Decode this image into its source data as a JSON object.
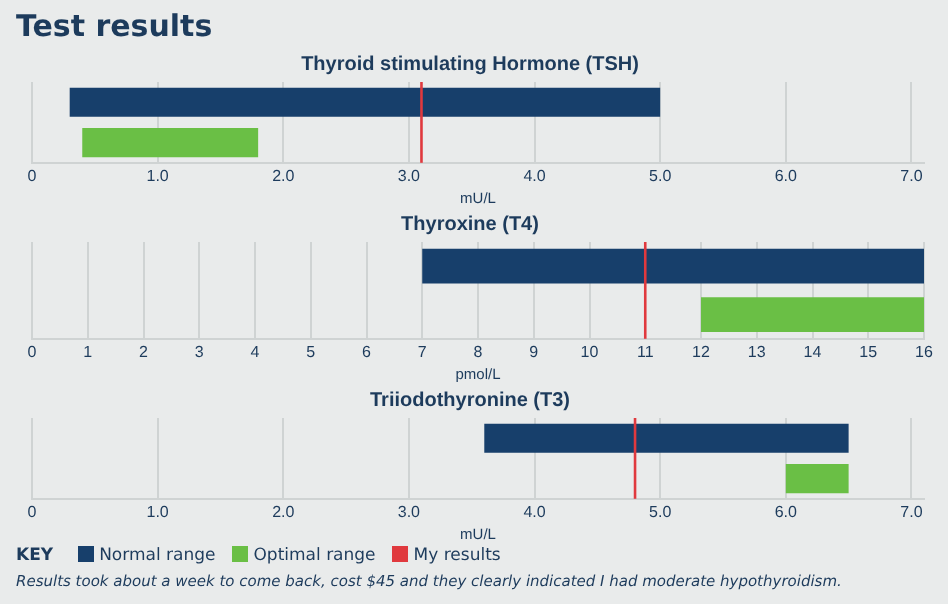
{
  "chart_data": [
    {
      "type": "bar",
      "title": "Test results",
      "subtitle": "Thyroid stimulating Hormone (TSH)",
      "xlabel": "mU/L",
      "orientation": "horizontal",
      "categories": [
        null,
        null
      ],
      "series": [
        {
          "color": "#173f6b",
          "values": [
            4.7,
            null
          ],
          "base": [
            0.3,
            null
          ]
        },
        {
          "color": "#6abf45",
          "values": [
            null,
            1.4
          ],
          "base": [
            null,
            0.4
          ]
        }
      ],
      "xlim": [
        0,
        7.1
      ],
      "xticks": [
        {
          "value": 0,
          "label": "0"
        },
        {
          "value": 1,
          "label": "1.0"
        },
        {
          "value": 2,
          "label": "2.0"
        },
        {
          "value": 3,
          "label": "3.0"
        },
        {
          "value": 4,
          "label": "4.0"
        },
        {
          "value": 5,
          "label": "5.0"
        },
        {
          "value": 6,
          "label": "6.0"
        },
        {
          "value": 7,
          "label": "7.0"
        }
      ],
      "ref_lines": [
        {
          "axis": "x",
          "value": 3.1,
          "color": "#e0393e"
        }
      ],
      "grid": "x",
      "tick_labels": "x"
    },
    {
      "type": "bar",
      "title": "Thyroxine (T4)",
      "xlabel": "pmol/L",
      "orientation": "horizontal",
      "categories": [
        null,
        null
      ],
      "series": [
        {
          "color": "#173f6b",
          "values": [
            9,
            null
          ],
          "base": [
            7,
            null
          ]
        },
        {
          "color": "#6abf45",
          "values": [
            null,
            4
          ],
          "base": [
            null,
            12
          ]
        }
      ],
      "xlim": [
        0,
        16
      ],
      "xticks": [
        0,
        1,
        2,
        3,
        4,
        5,
        6,
        7,
        8,
        9,
        10,
        11,
        12,
        13,
        14,
        15,
        16
      ],
      "ref_lines": [
        {
          "axis": "x",
          "value": 11,
          "color": "#e0393e"
        }
      ],
      "grid": "x",
      "tick_labels": "x"
    },
    {
      "type": "bar",
      "title": "Triiodothyronine (T3)",
      "xlabel": "mU/L",
      "orientation": "horizontal",
      "categories": [
        null,
        null
      ],
      "series": [
        {
          "name": "Normal range",
          "color": "#173f6b",
          "values": [
            2.9,
            null
          ],
          "base": [
            3.6,
            null
          ]
        },
        {
          "name": "Optimal range",
          "color": "#6abf45",
          "values": [
            null,
            0.5
          ],
          "base": [
            null,
            6.0
          ]
        }
      ],
      "xlim": [
        0,
        7.1
      ],
      "xticks": [
        {
          "value": 0,
          "label": "0"
        },
        {
          "value": 1,
          "label": "1.0"
        },
        {
          "value": 2,
          "label": "2.0"
        },
        {
          "value": 3,
          "label": "3.0"
        },
        {
          "value": 4,
          "label": "4.0"
        },
        {
          "value": 5,
          "label": "5.0"
        },
        {
          "value": 6,
          "label": "6.0"
        },
        {
          "value": 7,
          "label": "7.0"
        }
      ],
      "ref_lines": [
        {
          "axis": "x",
          "value": 4.8,
          "label": "My results",
          "color": "#e0393e"
        }
      ],
      "grid": "x",
      "tick_labels": "x",
      "legend": "bottom",
      "legend_title": "KEY",
      "annotations": [
        "Results took about a week to come back, cost $45 and they clearly indicated I had moderate hypothyroidism."
      ]
    }
  ]
}
